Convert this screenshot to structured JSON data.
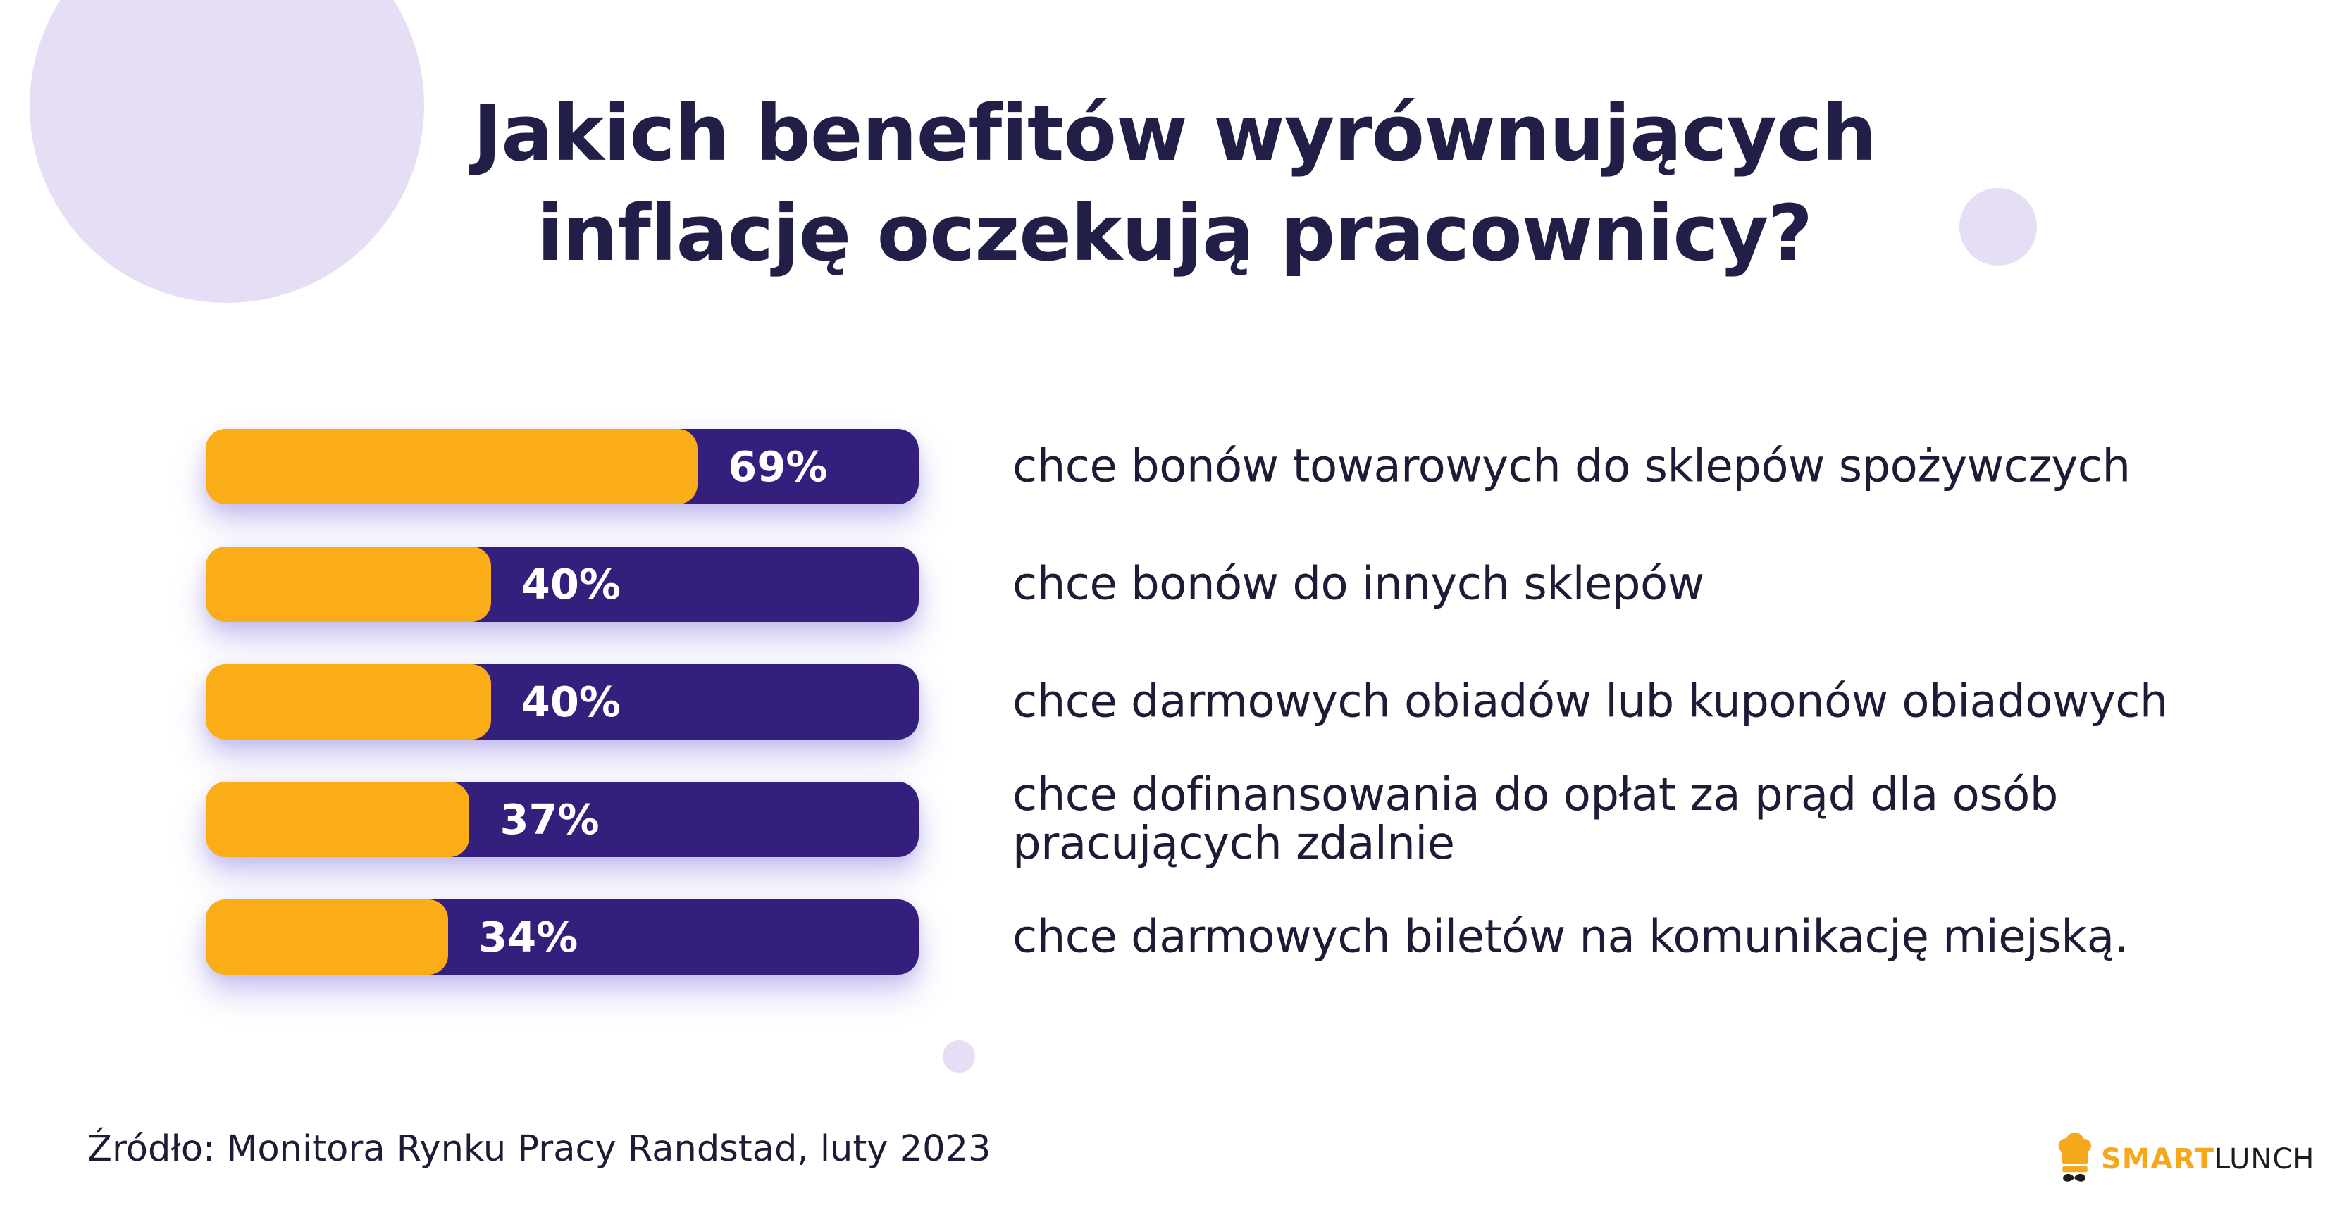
{
  "title": {
    "line1": "Jakich benefitów wyrównujących",
    "line2": "inflację oczekują pracownicy?",
    "color": "#211F47"
  },
  "chart_data": {
    "type": "bar",
    "orientation": "horizontal",
    "value_unit": "%",
    "xlim": [
      0,
      100
    ],
    "grid": false,
    "legend": false,
    "categories": [
      "chce bonów towarowych do sklepów spożywczych",
      "chce bonów do innych sklepów",
      "chce darmowych obiadów lub kuponów obiadowych",
      "chce dofinansowania do opłat za prąd dla osób pracujących zdalnie",
      "chce darmowych biletów na komunikację miejską."
    ],
    "values": [
      69,
      40,
      40,
      37,
      34
    ],
    "rows": [
      {
        "label": "chce bonów towarowych do sklepów spożywczych",
        "value": 69,
        "value_label": "69%"
      },
      {
        "label": "chce bonów do innych sklepów",
        "value": 40,
        "value_label": "40%"
      },
      {
        "label": "chce darmowych obiadów lub kuponów obiadowych",
        "value": 40,
        "value_label": "40%"
      },
      {
        "label": "chce dofinansowania do opłat za prąd dla osób pracujących zdalnie",
        "value": 37,
        "value_label": "37%"
      },
      {
        "label": "chce darmowych biletów na komunikację miejską.",
        "value": 34,
        "value_label": "34%"
      }
    ],
    "colors": {
      "bar_fill": "#FBAD18",
      "bar_track": "#34207C",
      "value_text": "#FFFFFF",
      "label_text": "#1D1B35"
    }
  },
  "decor": {
    "circle_color": "#E5DEF4"
  },
  "footer": {
    "source": "Źródło: Monitora Rynku Pracy Randstad, luty 2023",
    "logo": {
      "smart": "SMART",
      "lunch": "LUNCH",
      "smart_color": "#F5A81C",
      "lunch_color": "#1C1C1C",
      "icon": "chef-hat-mustache-icon"
    }
  }
}
